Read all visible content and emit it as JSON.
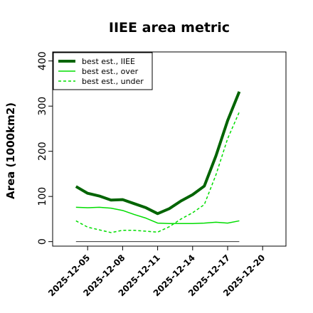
{
  "chart_data": {
    "type": "line",
    "title": "IIEE area metric",
    "xlabel": "",
    "ylabel": "Area (1000km2)",
    "xlim": [
      "2025-12-02",
      "2025-12-22"
    ],
    "ylim": [
      -10,
      420
    ],
    "yticks": [
      0,
      100,
      200,
      300,
      400
    ],
    "xticks": [
      "2025-12-05",
      "2025-12-08",
      "2025-12-11",
      "2025-12-14",
      "2025-12-17",
      "2025-12-20"
    ],
    "grid": false,
    "legend": {
      "placement": "top-left",
      "entries": [
        "best est., IIEE",
        "best est., over",
        "best est., under"
      ]
    },
    "x": [
      "2025-12-04",
      "2025-12-05",
      "2025-12-06",
      "2025-12-07",
      "2025-12-08",
      "2025-12-09",
      "2025-12-10",
      "2025-12-11",
      "2025-12-12",
      "2025-12-13",
      "2025-12-14",
      "2025-12-15",
      "2025-12-16",
      "2025-12-17",
      "2025-12-18"
    ],
    "series": [
      {
        "name": "best est., IIEE",
        "color": "#006400",
        "style": "solid-thick",
        "values": [
          122,
          107,
          101,
          92,
          93,
          84,
          75,
          62,
          73,
          90,
          104,
          123,
          190,
          268,
          332
        ]
      },
      {
        "name": "best est., over",
        "color": "#00dd00",
        "style": "solid",
        "values": [
          76,
          75,
          76,
          74,
          69,
          60,
          52,
          41,
          40,
          40,
          40,
          41,
          43,
          41,
          46
        ]
      },
      {
        "name": "best est., under",
        "color": "#00dd00",
        "style": "dashed",
        "values": [
          46,
          32,
          26,
          20,
          25,
          25,
          23,
          21,
          33,
          50,
          64,
          82,
          148,
          228,
          287
        ]
      },
      {
        "name": "",
        "color": "#333333",
        "style": "thin",
        "values": [
          0,
          0,
          0,
          0,
          0,
          0,
          0,
          0,
          0,
          0,
          0,
          0,
          0,
          0,
          0
        ]
      }
    ]
  }
}
